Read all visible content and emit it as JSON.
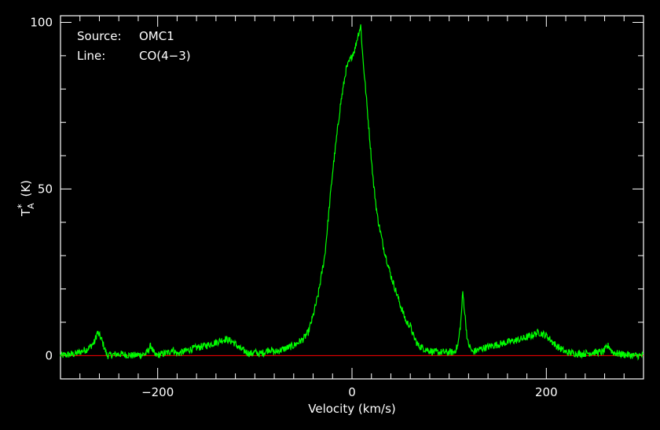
{
  "chart_data": {
    "type": "line",
    "title": "",
    "xlabel": "Velocity (km/s)",
    "ylabel": {
      "symbol": "T",
      "superscript": "*",
      "subscript": "A",
      "unit": "(K)"
    },
    "xlim": [
      -300,
      300
    ],
    "ylim": [
      -7,
      102
    ],
    "x_ticks": [
      -200,
      0,
      200
    ],
    "x_tick_labels": [
      "−200",
      "0",
      "200"
    ],
    "y_ticks": [
      0,
      50,
      100
    ],
    "y_tick_labels": [
      "0",
      "50",
      "100"
    ],
    "grid": false,
    "legend": "none",
    "annotations": {
      "source_label": "Source:",
      "source_value": "OMC1",
      "line_label": "Line:",
      "line_value": "CO(4−3)"
    },
    "baseline": {
      "y": 0,
      "color": "#ff0000"
    },
    "series": [
      {
        "color": "#00ff00",
        "x": [
          -300,
          -285,
          -272,
          -265,
          -262,
          -258,
          -252,
          -240,
          -225,
          -212,
          -207,
          -203,
          -195,
          -188,
          -185,
          -180,
          -165,
          -150,
          -140,
          -130,
          -122,
          -115,
          -105,
          -100,
          -95,
          -90,
          -85,
          -80,
          -70,
          -60,
          -50,
          -45,
          -40,
          -35,
          -28,
          -20,
          -12,
          -6,
          0,
          3,
          6,
          9,
          11,
          14,
          18,
          22,
          26,
          32,
          40,
          50,
          56,
          60,
          63,
          68,
          75,
          85,
          95,
          105,
          109,
          112,
          114,
          116,
          119,
          124,
          132,
          145,
          160,
          175,
          185,
          192,
          200,
          210,
          220,
          235,
          250,
          258,
          264,
          268,
          275,
          290,
          300
        ],
        "y": [
          0,
          0.5,
          2,
          4,
          7,
          5,
          0,
          0.5,
          0,
          0.5,
          3,
          0,
          0.5,
          1,
          2,
          0.5,
          2,
          3,
          4,
          5,
          4,
          2,
          0.5,
          1,
          0.5,
          1,
          2,
          1,
          2,
          3,
          5,
          7,
          12,
          18,
          30,
          55,
          75,
          86,
          90,
          92,
          96,
          99,
          90,
          80,
          66,
          52,
          42,
          33,
          24,
          15,
          10,
          9,
          6,
          3,
          2,
          1,
          1,
          1,
          3,
          10,
          19,
          13,
          4,
          1,
          2,
          3,
          4,
          5,
          6,
          7,
          6,
          3,
          1,
          0.5,
          1,
          1,
          3,
          1,
          0.5,
          0,
          0
        ]
      }
    ]
  }
}
